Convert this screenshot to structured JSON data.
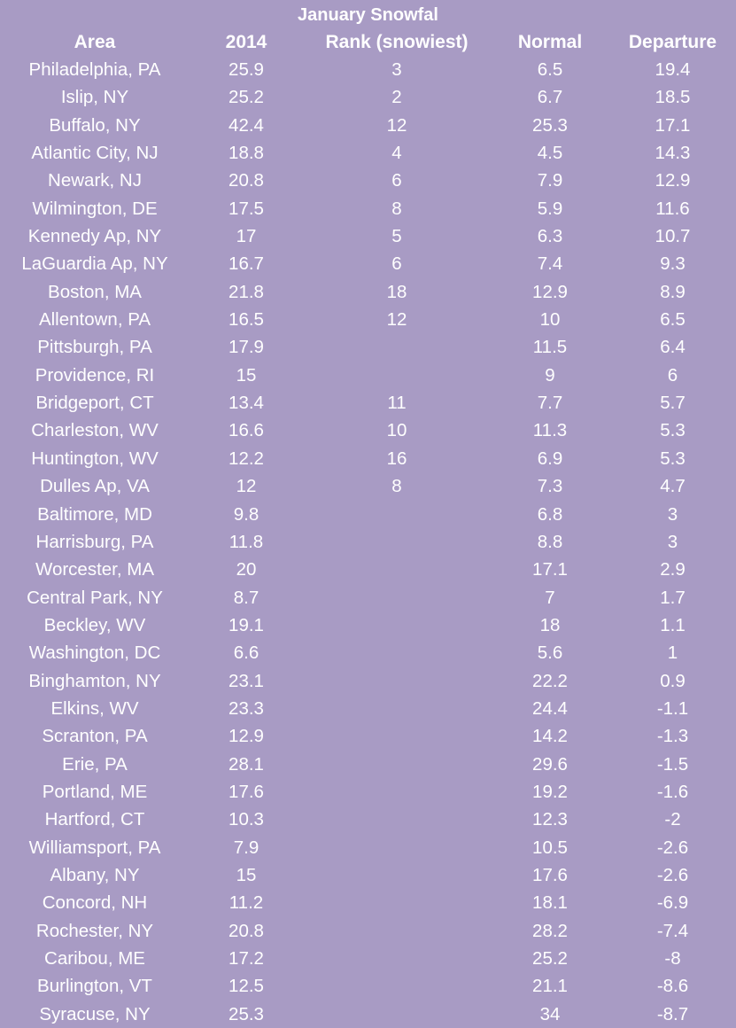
{
  "title": "January Snowfal",
  "columns": [
    "Area",
    "2014",
    "Rank (snowiest)",
    "Normal",
    "Departure"
  ],
  "rows": [
    [
      "Philadelphia, PA",
      "25.9",
      "3",
      "6.5",
      "19.4"
    ],
    [
      "Islip, NY",
      "25.2",
      "2",
      "6.7",
      "18.5"
    ],
    [
      "Buffalo, NY",
      "42.4",
      "12",
      "25.3",
      "17.1"
    ],
    [
      "Atlantic City, NJ",
      "18.8",
      "4",
      "4.5",
      "14.3"
    ],
    [
      "Newark, NJ",
      "20.8",
      "6",
      "7.9",
      "12.9"
    ],
    [
      "Wilmington, DE",
      "17.5",
      "8",
      "5.9",
      "11.6"
    ],
    [
      "Kennedy Ap, NY",
      "17",
      "5",
      "6.3",
      "10.7"
    ],
    [
      "LaGuardia Ap, NY",
      "16.7",
      "6",
      "7.4",
      "9.3"
    ],
    [
      "Boston, MA",
      "21.8",
      "18",
      "12.9",
      "8.9"
    ],
    [
      "Allentown, PA",
      "16.5",
      "12",
      "10",
      "6.5"
    ],
    [
      "Pittsburgh, PA",
      "17.9",
      "",
      "11.5",
      "6.4"
    ],
    [
      "Providence, RI",
      "15",
      "",
      "9",
      "6"
    ],
    [
      "Bridgeport, CT",
      "13.4",
      "11",
      "7.7",
      "5.7"
    ],
    [
      "Charleston, WV",
      "16.6",
      "10",
      "11.3",
      "5.3"
    ],
    [
      "Huntington, WV",
      "12.2",
      "16",
      "6.9",
      "5.3"
    ],
    [
      "Dulles Ap, VA",
      "12",
      "8",
      "7.3",
      "4.7"
    ],
    [
      "Baltimore, MD",
      "9.8",
      "",
      "6.8",
      "3"
    ],
    [
      "Harrisburg, PA",
      "11.8",
      "",
      "8.8",
      "3"
    ],
    [
      "Worcester, MA",
      "20",
      "",
      "17.1",
      "2.9"
    ],
    [
      "Central Park, NY",
      "8.7",
      "",
      "7",
      "1.7"
    ],
    [
      "Beckley, WV",
      "19.1",
      "",
      "18",
      "1.1"
    ],
    [
      "Washington, DC",
      "6.6",
      "",
      "5.6",
      "1"
    ],
    [
      "Binghamton, NY",
      "23.1",
      "",
      "22.2",
      "0.9"
    ],
    [
      "Elkins, WV",
      "23.3",
      "",
      "24.4",
      "-1.1"
    ],
    [
      "Scranton, PA",
      "12.9",
      "",
      "14.2",
      "-1.3"
    ],
    [
      "Erie, PA",
      "28.1",
      "",
      "29.6",
      "-1.5"
    ],
    [
      "Portland, ME",
      "17.6",
      "",
      "19.2",
      "-1.6"
    ],
    [
      "Hartford, CT",
      "10.3",
      "",
      "12.3",
      "-2"
    ],
    [
      "Williamsport, PA",
      "7.9",
      "",
      "10.5",
      "-2.6"
    ],
    [
      "Albany, NY",
      "15",
      "",
      "17.6",
      "-2.6"
    ],
    [
      "Concord, NH",
      "11.2",
      "",
      "18.1",
      "-6.9"
    ],
    [
      "Rochester, NY",
      "20.8",
      "",
      "28.2",
      "-7.4"
    ],
    [
      "Caribou, ME",
      "17.2",
      "",
      "25.2",
      "-8"
    ],
    [
      "Burlington, VT",
      "12.5",
      "",
      "21.1",
      "-8.6"
    ],
    [
      "Syracuse, NY",
      "25.3",
      "",
      "34",
      "-8.7"
    ]
  ],
  "colors": {
    "background": "#a89bc4",
    "text": "#ffffff"
  }
}
